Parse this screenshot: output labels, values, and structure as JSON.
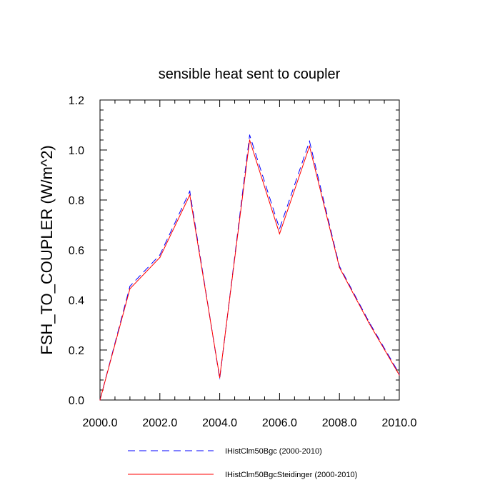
{
  "chart_data": {
    "type": "line",
    "title": "sensible heat sent to coupler",
    "xlabel": "",
    "ylabel": "FSH_TO_COUPLER  (W/m^2)",
    "xlim": [
      2000,
      2010
    ],
    "ylim": [
      0,
      1.2
    ],
    "x_ticks": [
      "2000.0",
      "2002.0",
      "2004.0",
      "2006.0",
      "2008.0",
      "2010.0"
    ],
    "y_ticks": [
      "0.0",
      "0.2",
      "0.4",
      "0.6",
      "0.8",
      "1.0",
      "1.2"
    ],
    "x": [
      2000,
      2001,
      2002,
      2003,
      2004,
      2005,
      2006,
      2007,
      2008,
      2009,
      2010
    ],
    "series": [
      {
        "name": "IHistClm50Bgc (2000-2010)",
        "color": "#0000ff",
        "dash": "dashed",
        "values": [
          0.0,
          0.455,
          0.58,
          0.835,
          0.085,
          1.06,
          0.685,
          1.035,
          0.535,
          0.31,
          0.105
        ]
      },
      {
        "name": "IHistClm50BgcSteidinger (2000-2010)",
        "color": "#ff0000",
        "dash": "solid",
        "values": [
          0.0,
          0.445,
          0.57,
          0.82,
          0.09,
          1.04,
          0.665,
          1.015,
          0.53,
          0.305,
          0.1
        ]
      }
    ],
    "grid": false,
    "legend_position": "bottom"
  }
}
